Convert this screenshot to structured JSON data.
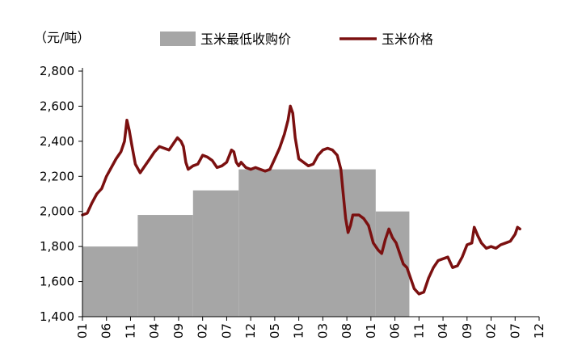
{
  "chart_data": {
    "type": "area",
    "ylabel": "（元/吨）",
    "ylim": [
      1400,
      2800
    ],
    "yticks": [
      1400,
      1600,
      1800,
      2000,
      2200,
      2400,
      2600,
      2800
    ],
    "ytick_labels": [
      "1,400",
      "1,600",
      "1,800",
      "2,000",
      "2,200",
      "2,400",
      "2,600",
      "2,800"
    ],
    "x_tick_labels": [
      "01",
      "06",
      "11",
      "04",
      "09",
      "02",
      "07",
      "12",
      "05",
      "10",
      "03",
      "08",
      "01",
      "06",
      "11",
      "04",
      "09",
      "02",
      "07",
      "12"
    ],
    "legend_position": "top",
    "series": [
      {
        "name": "玉米最低收购价",
        "kind": "step-area",
        "color": "#a6a6a6",
        "steps": [
          {
            "start": 0.0,
            "end": 2.3,
            "value": 1800
          },
          {
            "start": 2.3,
            "end": 4.6,
            "value": 1980
          },
          {
            "start": 4.6,
            "end": 6.5,
            "value": 2120
          },
          {
            "start": 6.5,
            "end": 12.2,
            "value": 2240
          },
          {
            "start": 12.2,
            "end": 13.6,
            "value": 2000
          }
        ]
      },
      {
        "name": "玉米价格",
        "kind": "line",
        "color": "#7b1010",
        "points": [
          [
            0.0,
            1980
          ],
          [
            0.2,
            1990
          ],
          [
            0.4,
            2050
          ],
          [
            0.6,
            2100
          ],
          [
            0.8,
            2130
          ],
          [
            1.0,
            2200
          ],
          [
            1.2,
            2250
          ],
          [
            1.4,
            2300
          ],
          [
            1.6,
            2340
          ],
          [
            1.75,
            2400
          ],
          [
            1.85,
            2520
          ],
          [
            1.95,
            2460
          ],
          [
            2.05,
            2380
          ],
          [
            2.2,
            2270
          ],
          [
            2.4,
            2220
          ],
          [
            2.6,
            2260
          ],
          [
            2.8,
            2300
          ],
          [
            3.0,
            2340
          ],
          [
            3.2,
            2370
          ],
          [
            3.4,
            2360
          ],
          [
            3.6,
            2350
          ],
          [
            3.8,
            2390
          ],
          [
            3.95,
            2420
          ],
          [
            4.1,
            2400
          ],
          [
            4.2,
            2370
          ],
          [
            4.3,
            2280
          ],
          [
            4.4,
            2240
          ],
          [
            4.6,
            2260
          ],
          [
            4.8,
            2270
          ],
          [
            5.0,
            2320
          ],
          [
            5.2,
            2310
          ],
          [
            5.4,
            2290
          ],
          [
            5.6,
            2250
          ],
          [
            5.8,
            2260
          ],
          [
            6.0,
            2280
          ],
          [
            6.2,
            2350
          ],
          [
            6.3,
            2340
          ],
          [
            6.4,
            2280
          ],
          [
            6.5,
            2260
          ],
          [
            6.6,
            2280
          ],
          [
            6.8,
            2250
          ],
          [
            7.0,
            2240
          ],
          [
            7.2,
            2250
          ],
          [
            7.4,
            2240
          ],
          [
            7.6,
            2230
          ],
          [
            7.8,
            2240
          ],
          [
            8.0,
            2300
          ],
          [
            8.2,
            2360
          ],
          [
            8.4,
            2440
          ],
          [
            8.55,
            2520
          ],
          [
            8.65,
            2600
          ],
          [
            8.75,
            2560
          ],
          [
            8.85,
            2420
          ],
          [
            9.0,
            2300
          ],
          [
            9.2,
            2280
          ],
          [
            9.4,
            2260
          ],
          [
            9.6,
            2270
          ],
          [
            9.8,
            2320
          ],
          [
            10.0,
            2350
          ],
          [
            10.2,
            2360
          ],
          [
            10.4,
            2350
          ],
          [
            10.6,
            2320
          ],
          [
            10.75,
            2240
          ],
          [
            10.85,
            2100
          ],
          [
            10.95,
            1960
          ],
          [
            11.05,
            1880
          ],
          [
            11.15,
            1920
          ],
          [
            11.25,
            1980
          ],
          [
            11.5,
            1980
          ],
          [
            11.7,
            1960
          ],
          [
            11.9,
            1920
          ],
          [
            12.1,
            1820
          ],
          [
            12.3,
            1780
          ],
          [
            12.45,
            1760
          ],
          [
            12.6,
            1840
          ],
          [
            12.75,
            1900
          ],
          [
            12.9,
            1850
          ],
          [
            13.05,
            1820
          ],
          [
            13.2,
            1760
          ],
          [
            13.35,
            1700
          ],
          [
            13.5,
            1680
          ],
          [
            13.65,
            1620
          ],
          [
            13.8,
            1560
          ],
          [
            14.0,
            1530
          ],
          [
            14.2,
            1540
          ],
          [
            14.4,
            1620
          ],
          [
            14.6,
            1680
          ],
          [
            14.8,
            1720
          ],
          [
            15.0,
            1730
          ],
          [
            15.2,
            1740
          ],
          [
            15.4,
            1680
          ],
          [
            15.6,
            1690
          ],
          [
            15.8,
            1740
          ],
          [
            16.0,
            1810
          ],
          [
            16.2,
            1820
          ],
          [
            16.3,
            1910
          ],
          [
            16.45,
            1860
          ],
          [
            16.6,
            1820
          ],
          [
            16.8,
            1790
          ],
          [
            17.0,
            1800
          ],
          [
            17.2,
            1790
          ],
          [
            17.4,
            1810
          ],
          [
            17.6,
            1820
          ],
          [
            17.8,
            1830
          ],
          [
            18.0,
            1870
          ],
          [
            18.1,
            1910
          ],
          [
            18.2,
            1900
          ]
        ]
      }
    ]
  }
}
